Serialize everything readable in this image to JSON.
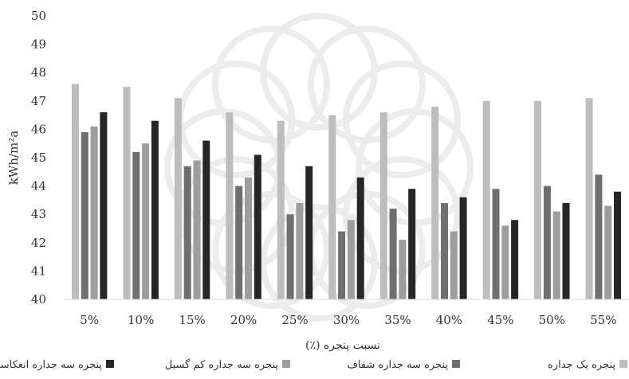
{
  "chart_data": {
    "type": "bar",
    "title": "",
    "xlabel": "نسبت پنجره (٪)",
    "ylabel": "kWh/m²a",
    "ylim": [
      40,
      50
    ],
    "yticks": [
      40,
      41,
      42,
      43,
      44,
      45,
      46,
      47,
      48,
      49,
      50
    ],
    "categories": [
      "5%",
      "10%",
      "15%",
      "20%",
      "25%",
      "30%",
      "35%",
      "40%",
      "45%",
      "50%",
      "55%"
    ],
    "grid": false,
    "legend_position": "bottom",
    "series": [
      {
        "name": "پنجره یک جداره",
        "color": "#bdbdbd",
        "values": [
          47.6,
          47.5,
          47.1,
          46.6,
          46.3,
          46.5,
          46.6,
          46.8,
          47.0,
          47.0,
          47.1
        ]
      },
      {
        "name": "پنجره سه جداره شفاف",
        "color": "#6f6f6f",
        "values": [
          45.9,
          45.2,
          44.7,
          44.0,
          43.0,
          42.4,
          43.2,
          43.4,
          43.9,
          44.0,
          44.4
        ]
      },
      {
        "name": "پنجره سه جداره کم گسیل",
        "color": "#9d9d9d",
        "values": [
          46.1,
          45.5,
          44.9,
          44.3,
          43.4,
          42.8,
          42.1,
          42.4,
          42.6,
          43.1,
          43.3
        ]
      },
      {
        "name": "پنجره سه جداره انعکاسی",
        "color": "#262626",
        "values": [
          46.6,
          46.3,
          45.6,
          45.1,
          44.7,
          44.3,
          43.9,
          43.6,
          42.8,
          43.4,
          43.8
        ]
      }
    ]
  }
}
